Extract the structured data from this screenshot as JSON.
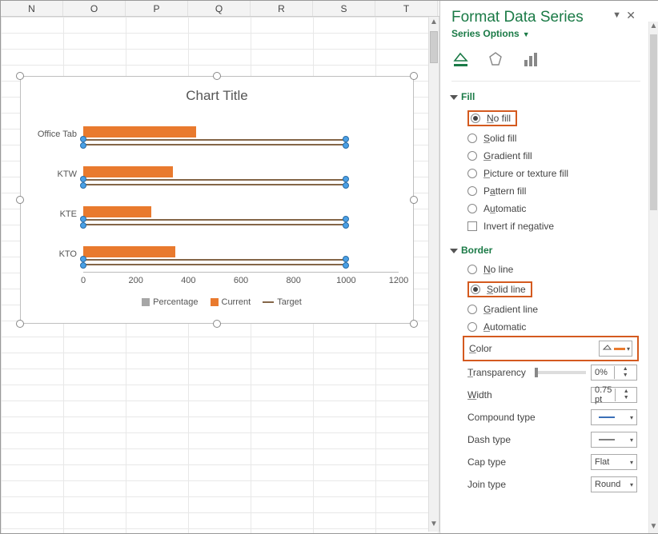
{
  "columns": [
    "N",
    "O",
    "P",
    "Q",
    "R",
    "S",
    "T"
  ],
  "chart": {
    "title": "Chart Title",
    "type": "bar",
    "xmax": 1200,
    "xticks": [
      0,
      200,
      400,
      600,
      800,
      1000,
      1200
    ],
    "categories": [
      "Office Tab",
      "KTW",
      "KTE",
      "KTO"
    ],
    "series": {
      "current": {
        "label": "Current",
        "color": "#e97a2e",
        "values": [
          430,
          340,
          260,
          350
        ]
      },
      "target": {
        "label": "Target",
        "line_color": "#846648",
        "values": [
          1000,
          1000,
          1000,
          1000
        ]
      },
      "percentage": {
        "label": "Percentage",
        "color": "#a6a6a6"
      }
    },
    "row_top": [
      18,
      68,
      118,
      168
    ],
    "background": "#ffffff",
    "axis_color": "#bbbbbb"
  },
  "panel": {
    "title": "Format Data Series",
    "subtitle": "Series Options",
    "fill": {
      "title": "Fill",
      "options": [
        "No fill",
        "Solid fill",
        "Gradient fill",
        "Picture or texture fill",
        "Pattern fill",
        "Automatic"
      ],
      "selected": "No fill",
      "invert_label": "Invert if negative"
    },
    "border": {
      "title": "Border",
      "options": [
        "No line",
        "Solid line",
        "Gradient line",
        "Automatic"
      ],
      "selected": "Solid line"
    },
    "props": {
      "color_label": "Color",
      "color_value": "#e97a2e",
      "transparency_label": "Transparency",
      "transparency": "0%",
      "width_label": "Width",
      "width": "0.75 pt",
      "compound_label": "Compound type",
      "dash_label": "Dash type",
      "cap_label": "Cap type",
      "cap": "Flat",
      "join_label": "Join type",
      "join": "Round"
    }
  }
}
